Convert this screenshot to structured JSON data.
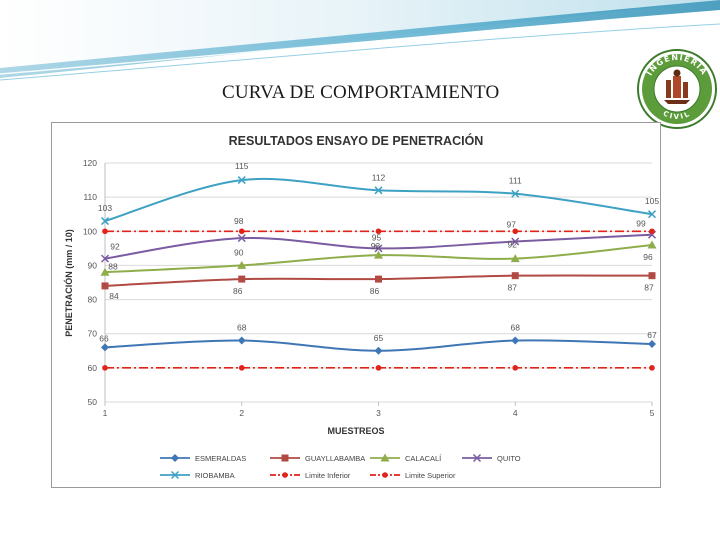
{
  "slide": {
    "title": "CURVA DE COMPORTAMIENTO",
    "logo_text_top": "INGENIERIA",
    "logo_text_bottom": "CIVIL",
    "banner_colors": [
      "#b9dbe8",
      "#2f8fb5",
      "#7cc3dd"
    ]
  },
  "chart_data": {
    "type": "line",
    "title": "RESULTADOS ENSAYO DE PENETRACIÓN",
    "xlabel": "MUESTREOS",
    "ylabel": "PENETRACIÓN (mm / 10)",
    "categories": [
      "1",
      "2",
      "3",
      "4",
      "5"
    ],
    "ylim": [
      50,
      120
    ],
    "yticks": [
      "50",
      "60",
      "70",
      "80",
      "90",
      "100",
      "110",
      "120"
    ],
    "grid": true,
    "legend_position": "bottom",
    "series": [
      {
        "name": "ESMERALDAS",
        "values": [
          66,
          68,
          65,
          68,
          67
        ],
        "color": "#3f77b6",
        "marker": "diamond",
        "dash": "solid",
        "labels": [
          "66",
          "68",
          "65",
          "68",
          "67"
        ]
      },
      {
        "name": "GUAYLLABAMBA",
        "values": [
          84,
          86,
          86,
          87,
          87
        ],
        "color": "#b24a44",
        "marker": "square",
        "dash": "solid",
        "labels": [
          "84",
          "86",
          "86",
          "87",
          "87"
        ]
      },
      {
        "name": "CALACALÍ",
        "values": [
          88,
          90,
          93,
          92,
          96
        ],
        "color": "#8fad4a",
        "marker": "triangle",
        "dash": "solid",
        "labels": [
          "88",
          "90",
          "93",
          "92",
          "96"
        ]
      },
      {
        "name": "QUITO",
        "values": [
          92,
          98,
          95,
          97,
          99
        ],
        "color": "#7b5ca2",
        "marker": "x",
        "dash": "solid",
        "labels": [
          "92",
          "98",
          "95",
          "97",
          "99"
        ]
      },
      {
        "name": "RIOBAMBA",
        "values": [
          103,
          115,
          112,
          111,
          105
        ],
        "color": "#3da1c4",
        "marker": "x",
        "dash": "solid",
        "labels": [
          "103",
          "115",
          "112",
          "111",
          "105"
        ]
      },
      {
        "name": "Limite Inferior",
        "values": [
          60,
          60,
          60,
          60,
          60
        ],
        "color": "#e2231a",
        "marker": "circle",
        "dash": "dashdot",
        "labels": []
      },
      {
        "name": "Limite Superior",
        "values": [
          100,
          100,
          100,
          100,
          100
        ],
        "color": "#e2231a",
        "marker": "circle",
        "dash": "dashdot",
        "labels": []
      }
    ]
  }
}
